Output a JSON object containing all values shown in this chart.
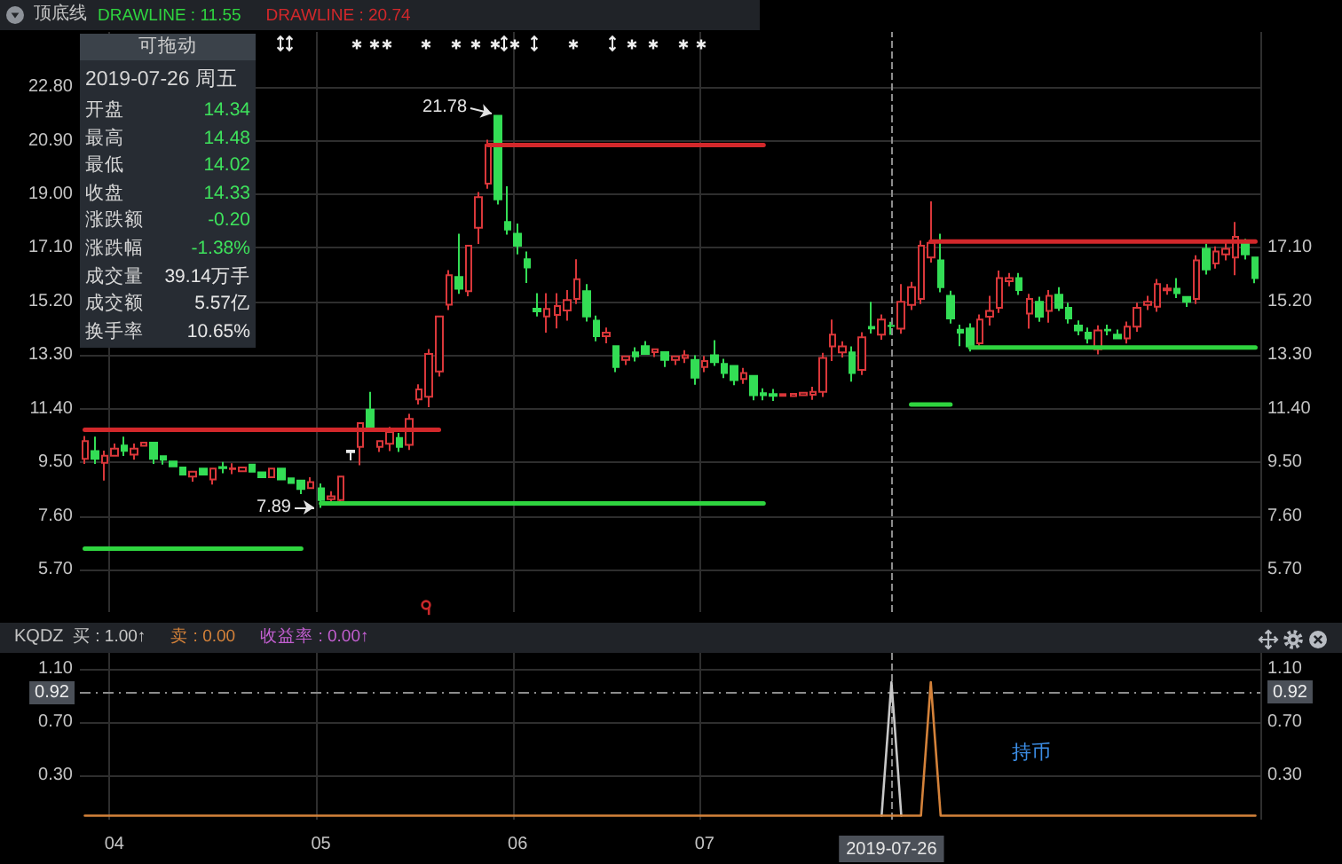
{
  "chart_data": [
    {
      "type": "candlestick",
      "title": "顶底线",
      "categories": [
        null,
        null,
        null,
        "04",
        null,
        null,
        null,
        null,
        null,
        null,
        null,
        null,
        null,
        null,
        null,
        null,
        null,
        null,
        null,
        null,
        null,
        null,
        null,
        null,
        "05",
        null,
        null,
        null,
        null,
        null,
        null,
        null,
        null,
        null,
        null,
        null,
        null,
        null,
        null,
        null,
        null,
        null,
        null,
        null,
        "06",
        null,
        null,
        null,
        null,
        null,
        null,
        null,
        null,
        null,
        null,
        null,
        null,
        null,
        null,
        null,
        null,
        null,
        null,
        "07",
        null,
        null,
        null,
        null,
        null,
        null,
        null,
        null,
        null,
        null,
        null,
        null,
        null,
        null,
        null,
        null,
        null,
        null,
        "2019-07-26",
        null,
        null,
        null,
        null,
        null,
        null,
        null,
        null,
        null,
        null,
        null,
        null,
        null,
        null,
        null,
        null,
        null,
        null,
        null,
        null,
        null,
        null,
        null,
        null,
        null,
        null,
        null,
        null,
        null,
        null,
        null,
        null,
        null,
        null,
        null,
        null,
        null
      ],
      "ohlc": [
        [
          9.63,
          10.44,
          9.45,
          10.26
        ],
        [
          9.9,
          10.41,
          9.45,
          9.63
        ],
        [
          9.49,
          9.92,
          8.86,
          9.74
        ],
        [
          9.74,
          10.17,
          9.74,
          9.99
        ],
        [
          10.1,
          10.41,
          9.73,
          9.91
        ],
        [
          9.78,
          10.17,
          9.6,
          9.99
        ],
        [
          10.09,
          10.2,
          10.09,
          10.2
        ],
        [
          10.2,
          10.2,
          9.45,
          9.63
        ],
        [
          9.72,
          9.72,
          9.42,
          9.6
        ],
        [
          9.53,
          9.53,
          9.36,
          9.36
        ],
        [
          9.32,
          9.32,
          9.07,
          9.07
        ],
        [
          9.0,
          9.17,
          8.82,
          9.17
        ],
        [
          9.28,
          9.28,
          9.07,
          9.07
        ],
        [
          8.9,
          9.28,
          8.72,
          9.28
        ],
        [
          9.34,
          9.52,
          9.12,
          9.3
        ],
        [
          9.27,
          9.47,
          9.09,
          9.29
        ],
        [
          9.19,
          9.32,
          9.19,
          9.32
        ],
        [
          9.42,
          9.42,
          9.17,
          9.17
        ],
        [
          9.15,
          9.15,
          8.98,
          8.98
        ],
        [
          8.98,
          9.28,
          8.98,
          9.28
        ],
        [
          9.28,
          9.28,
          8.9,
          8.9
        ],
        [
          8.94,
          8.94,
          8.77,
          8.77
        ],
        [
          8.86,
          8.86,
          8.38,
          8.56
        ],
        [
          8.59,
          8.98,
          8.59,
          8.8
        ],
        [
          8.58,
          8.76,
          7.89,
          8.17
        ],
        [
          8.2,
          8.48,
          8.02,
          8.3
        ],
        [
          8.17,
          9.0,
          7.99,
          9.0
        ],
        [
          9.86,
          9.92,
          9.57,
          9.92
        ],
        [
          10.05,
          10.89,
          9.4,
          10.89
        ],
        [
          11.37,
          12.0,
          10.74,
          10.74
        ],
        [
          10.05,
          10.26,
          9.87,
          10.26
        ],
        [
          10.16,
          10.76,
          9.9,
          10.58
        ],
        [
          10.37,
          10.55,
          9.87,
          10.05
        ],
        [
          10.12,
          11.22,
          9.94,
          11.04
        ],
        [
          11.73,
          12.27,
          11.55,
          12.09
        ],
        [
          11.83,
          13.52,
          11.46,
          13.34
        ],
        [
          12.72,
          14.67,
          12.54,
          14.67
        ],
        [
          15.09,
          16.31,
          14.9,
          16.13
        ],
        [
          16.07,
          17.6,
          15.47,
          15.65
        ],
        [
          15.57,
          17.18,
          15.39,
          17.18
        ],
        [
          17.81,
          19.08,
          17.24,
          18.9
        ],
        [
          19.38,
          20.93,
          19.2,
          20.75
        ],
        [
          21.78,
          21.78,
          18.64,
          18.82
        ],
        [
          18.02,
          19.28,
          17.57,
          17.75
        ],
        [
          17.6,
          17.96,
          16.87,
          17.18
        ],
        [
          16.7,
          16.97,
          15.86,
          16.41
        ],
        [
          14.95,
          15.5,
          14.67,
          14.85
        ],
        [
          14.67,
          15.5,
          14.1,
          14.94
        ],
        [
          14.73,
          15.5,
          14.25,
          15.04
        ],
        [
          14.88,
          15.61,
          14.52,
          15.25
        ],
        [
          15.29,
          16.7,
          15.11,
          15.99
        ],
        [
          15.57,
          15.82,
          14.49,
          14.67
        ],
        [
          14.52,
          14.7,
          13.79,
          13.97
        ],
        [
          13.97,
          14.28,
          13.72,
          14.1
        ],
        [
          13.62,
          13.62,
          12.7,
          12.88
        ],
        [
          13.13,
          13.26,
          12.95,
          13.26
        ],
        [
          13.4,
          13.58,
          13.08,
          13.26
        ],
        [
          13.62,
          13.8,
          13.34,
          13.34
        ],
        [
          13.41,
          13.51,
          13.23,
          13.51
        ],
        [
          13.41,
          13.41,
          12.88,
          13.13
        ],
        [
          13.13,
          13.26,
          12.95,
          13.26
        ],
        [
          13.2,
          13.48,
          13.02,
          13.3
        ],
        [
          13.13,
          13.3,
          12.25,
          12.5
        ],
        [
          12.88,
          13.27,
          12.7,
          13.09
        ],
        [
          13.3,
          13.83,
          12.92,
          13.05
        ],
        [
          12.99,
          13.17,
          12.49,
          12.67
        ],
        [
          12.92,
          12.92,
          12.24,
          12.42
        ],
        [
          12.46,
          12.85,
          12.28,
          12.67
        ],
        [
          12.57,
          12.57,
          11.7,
          11.88
        ],
        [
          11.95,
          12.13,
          11.7,
          11.88
        ],
        [
          11.92,
          12.1,
          11.68,
          11.86
        ],
        [
          11.86,
          11.92,
          11.86,
          11.92
        ],
        [
          11.85,
          11.93,
          11.85,
          11.93
        ],
        [
          11.88,
          11.97,
          11.88,
          11.97
        ],
        [
          11.9,
          12.18,
          11.72,
          12.0
        ],
        [
          12.0,
          13.38,
          11.82,
          13.2
        ],
        [
          13.61,
          14.56,
          13.09,
          14.03
        ],
        [
          13.4,
          13.79,
          13.22,
          13.61
        ],
        [
          13.4,
          13.61,
          12.36,
          12.67
        ],
        [
          12.78,
          14.11,
          12.6,
          13.93
        ],
        [
          14.3,
          15.19,
          14.07,
          14.25
        ],
        [
          14.03,
          14.74,
          13.85,
          14.56
        ],
        [
          14.34,
          14.48,
          14.02,
          14.33
        ],
        [
          14.24,
          15.82,
          14.06,
          15.19
        ],
        [
          15.08,
          15.9,
          14.9,
          15.71
        ],
        [
          15.29,
          17.36,
          15.11,
          17.18
        ],
        [
          16.76,
          18.75,
          16.58,
          17.28
        ],
        [
          16.66,
          17.6,
          15.53,
          15.71
        ],
        [
          15.4,
          15.58,
          14.42,
          14.6
        ],
        [
          14.2,
          14.38,
          13.62,
          14.1
        ],
        [
          14.25,
          14.43,
          13.43,
          13.61
        ],
        [
          13.72,
          14.74,
          13.54,
          14.56
        ],
        [
          14.66,
          15.4,
          14.35,
          14.87
        ],
        [
          14.98,
          16.3,
          14.8,
          16.03
        ],
        [
          15.92,
          16.21,
          15.74,
          16.03
        ],
        [
          16.03,
          16.21,
          15.43,
          15.61
        ],
        [
          14.77,
          15.47,
          14.24,
          15.29
        ],
        [
          15.19,
          15.37,
          14.48,
          14.66
        ],
        [
          14.87,
          15.61,
          14.45,
          15.4
        ],
        [
          15.44,
          15.71,
          14.87,
          14.98
        ],
        [
          14.98,
          15.16,
          14.42,
          14.6
        ],
        [
          14.35,
          14.53,
          14.0,
          14.18
        ],
        [
          14.1,
          14.28,
          13.71,
          13.89
        ],
        [
          13.51,
          14.36,
          13.33,
          14.18
        ],
        [
          14.2,
          14.38,
          14.0,
          14.18
        ],
        [
          14.03,
          14.21,
          13.89,
          13.89
        ],
        [
          13.89,
          14.49,
          13.71,
          14.31
        ],
        [
          14.31,
          15.16,
          14.13,
          14.98
        ],
        [
          15.08,
          15.4,
          14.9,
          15.19
        ],
        [
          15.02,
          16.0,
          14.84,
          15.82
        ],
        [
          15.6,
          15.82,
          15.44,
          15.66
        ],
        [
          15.65,
          16.03,
          15.32,
          15.5
        ],
        [
          15.36,
          15.36,
          15.01,
          15.19
        ],
        [
          15.29,
          16.84,
          15.11,
          16.66
        ],
        [
          17.07,
          17.25,
          16.16,
          16.34
        ],
        [
          16.55,
          17.15,
          16.37,
          16.97
        ],
        [
          16.87,
          17.33,
          16.66,
          17.07
        ],
        [
          16.76,
          18.02,
          16.13,
          17.49
        ],
        [
          17.24,
          17.42,
          16.69,
          16.87
        ],
        [
          16.76,
          16.76,
          15.85,
          16.03
        ]
      ],
      "colors": [
        "#d9373a",
        "#33dd55",
        "#d9373a",
        "#d9373a",
        "#33dd55",
        "#d9373a",
        "#d9373a",
        "#33dd55",
        "#33dd55",
        "#33dd55",
        "#33dd55",
        "#d9373a",
        "#33dd55",
        "#d9373a",
        "#33dd55",
        "#d9373a",
        "#d9373a",
        "#33dd55",
        "#33dd55",
        "#d9373a",
        "#33dd55",
        "#33dd55",
        "#33dd55",
        "#d9373a",
        "#33dd55",
        "#d9373a",
        "#d9373a",
        "#e8e8e8",
        "#d9373a",
        "#33dd55",
        "#d9373a",
        "#d9373a",
        "#33dd55",
        "#d9373a",
        "#d9373a",
        "#d9373a",
        "#d9373a",
        "#d9373a",
        "#33dd55",
        "#d9373a",
        "#d9373a",
        "#d9373a",
        "#33dd55",
        "#33dd55",
        "#33dd55",
        "#33dd55",
        "#33dd55",
        "#d9373a",
        "#d9373a",
        "#d9373a",
        "#d9373a",
        "#33dd55",
        "#33dd55",
        "#d9373a",
        "#33dd55",
        "#d9373a",
        "#33dd55",
        "#33dd55",
        "#d9373a",
        "#33dd55",
        "#d9373a",
        "#d9373a",
        "#33dd55",
        "#d9373a",
        "#33dd55",
        "#33dd55",
        "#33dd55",
        "#d9373a",
        "#33dd55",
        "#33dd55",
        "#33dd55",
        "#d9373a",
        "#d9373a",
        "#d9373a",
        "#d9373a",
        "#d9373a",
        "#d9373a",
        "#d9373a",
        "#33dd55",
        "#d9373a",
        "#33dd55",
        "#d9373a",
        "#33dd55",
        "#d9373a",
        "#d9373a",
        "#d9373a",
        "#d9373a",
        "#33dd55",
        "#33dd55",
        "#33dd55",
        "#33dd55",
        "#d9373a",
        "#d9373a",
        "#d9373a",
        "#d9373a",
        "#33dd55",
        "#d9373a",
        "#33dd55",
        "#d9373a",
        "#33dd55",
        "#33dd55",
        "#33dd55",
        "#33dd55",
        "#d9373a",
        "#33dd55",
        "#33dd55",
        "#d9373a",
        "#d9373a",
        "#d9373a",
        "#d9373a",
        "#d9373a",
        "#33dd55",
        "#33dd55",
        "#d9373a",
        "#33dd55",
        "#d9373a",
        "#d9373a",
        "#d9373a",
        "#33dd55",
        "#33dd55"
      ],
      "series": [
        {
          "name": "DRAWLINE : 11.55",
          "type": "line",
          "color": "#2fd43f",
          "values": [
            6.45,
            6.45,
            6.45,
            6.45,
            6.45,
            6.45,
            6.45,
            6.45,
            6.45,
            6.45,
            6.45,
            6.45,
            6.45,
            6.45,
            6.45,
            6.45,
            6.45,
            6.45,
            6.45,
            6.45,
            6.45,
            6.45,
            6.45,
            null,
            8.05,
            8.05,
            8.05,
            8.05,
            8.05,
            8.05,
            8.05,
            8.05,
            8.05,
            8.05,
            8.05,
            8.05,
            8.05,
            8.05,
            8.05,
            8.05,
            8.05,
            8.05,
            8.05,
            8.05,
            8.05,
            8.05,
            8.05,
            8.05,
            8.05,
            8.05,
            8.05,
            8.05,
            8.05,
            8.05,
            8.05,
            8.05,
            8.05,
            8.05,
            8.05,
            8.05,
            8.05,
            8.05,
            8.05,
            8.05,
            8.05,
            8.05,
            8.05,
            8.05,
            8.05,
            8.05,
            null,
            null,
            null,
            null,
            null,
            null,
            null,
            null,
            null,
            null,
            null,
            null,
            null,
            null,
            11.55,
            11.55,
            11.55,
            11.55,
            11.55,
            null,
            13.57,
            13.57,
            13.57,
            13.57,
            13.57,
            13.57,
            13.57,
            13.57,
            13.57,
            13.57,
            13.57,
            13.57,
            13.57,
            13.57,
            13.57,
            13.57,
            13.57,
            13.57,
            13.57,
            13.57,
            13.57,
            13.57,
            13.57,
            13.57,
            13.57,
            13.57,
            13.57,
            13.57,
            13.57,
            13.57
          ]
        },
        {
          "name": "DRAWLINE : 20.74",
          "type": "line",
          "color": "#d3282b",
          "values": [
            10.66,
            10.66,
            10.66,
            10.66,
            10.66,
            10.66,
            10.66,
            10.66,
            10.66,
            10.66,
            10.66,
            10.66,
            10.66,
            10.66,
            10.66,
            10.66,
            10.66,
            10.66,
            10.66,
            10.66,
            10.66,
            10.66,
            10.66,
            10.66,
            10.66,
            10.66,
            10.66,
            10.66,
            10.66,
            10.66,
            10.66,
            10.66,
            10.66,
            10.66,
            10.66,
            10.66,
            10.66,
            null,
            null,
            null,
            null,
            20.74,
            20.74,
            20.74,
            20.74,
            20.74,
            20.74,
            20.74,
            20.74,
            20.74,
            20.74,
            20.74,
            20.74,
            20.74,
            20.74,
            20.74,
            20.74,
            20.74,
            20.74,
            20.74,
            20.74,
            20.74,
            20.74,
            20.74,
            20.74,
            20.74,
            20.74,
            20.74,
            20.74,
            20.74,
            null,
            null,
            null,
            null,
            null,
            null,
            null,
            null,
            null,
            null,
            null,
            null,
            null,
            null,
            null,
            null,
            17.33,
            17.33,
            17.33,
            17.33,
            17.33,
            17.33,
            17.33,
            17.33,
            17.33,
            17.33,
            17.33,
            17.33,
            17.33,
            17.33,
            17.33,
            17.33,
            17.33,
            17.33,
            17.33,
            17.33,
            17.33,
            17.33,
            17.33,
            17.33,
            17.33,
            17.33,
            17.33,
            17.33,
            17.33,
            17.33,
            17.33,
            17.33,
            17.33,
            17.33
          ]
        }
      ],
      "ylim": [
        4.2,
        24.75
      ],
      "yticks": [
        {
          "value": 5.7,
          "label": "5.70"
        },
        {
          "value": 7.6,
          "label": "7.60"
        },
        {
          "value": 9.5,
          "label": "9.50"
        },
        {
          "value": 11.4,
          "label": "11.40"
        },
        {
          "value": 13.3,
          "label": "13.30"
        },
        {
          "value": 15.2,
          "label": "15.20"
        },
        {
          "value": 17.1,
          "label": "17.10"
        },
        {
          "value": 19,
          "label": "19.00"
        },
        {
          "value": 20.9,
          "label": "20.90"
        },
        {
          "value": 22.8,
          "label": "22.80"
        }
      ],
      "y2lim": [
        4.2,
        24.75
      ],
      "y2ticks": [
        {
          "value": 5.7,
          "label": "5.70"
        },
        {
          "value": 7.6,
          "label": "7.60"
        },
        {
          "value": 9.5,
          "label": "9.50"
        },
        {
          "value": 11.4,
          "label": "11.40"
        },
        {
          "value": 13.3,
          "label": "13.30"
        },
        {
          "value": 15.2,
          "label": "15.20"
        },
        {
          "value": 17.1,
          "label": "17.10"
        }
      ],
      "ref_lines": [
        {
          "axis": "x",
          "value": "2019-07-26"
        }
      ],
      "annotations": [
        "21.78",
        "7.89"
      ],
      "grid": true,
      "legend": "top left",
      "tick_labels": "y"
    },
    {
      "type": "other",
      "title": "可拖动",
      "subtitle": "2019-07-26 周五",
      "annotations": [
        "开盘",
        "14.34",
        "最高",
        "14.48",
        "最低",
        "14.02",
        "收盘",
        "14.33",
        "涨跌额",
        "-0.20",
        "涨跌幅",
        "-1.38%",
        "成交量",
        "39.14万手",
        "成交额",
        "5.57亿",
        "换手率",
        "10.65%"
      ]
    },
    {
      "type": "line",
      "title": "KQDZ",
      "categories": [
        null,
        null,
        null,
        "04",
        null,
        null,
        null,
        null,
        null,
        null,
        null,
        null,
        null,
        null,
        null,
        null,
        null,
        null,
        null,
        null,
        null,
        null,
        null,
        null,
        "05",
        null,
        null,
        null,
        null,
        null,
        null,
        null,
        null,
        null,
        null,
        null,
        null,
        null,
        null,
        null,
        null,
        null,
        null,
        null,
        "06",
        null,
        null,
        null,
        null,
        null,
        null,
        null,
        null,
        null,
        null,
        null,
        null,
        null,
        null,
        null,
        null,
        null,
        null,
        "07",
        null,
        null,
        null,
        null,
        null,
        null,
        null,
        null,
        null,
        null,
        null,
        null,
        null,
        null,
        null,
        null,
        null,
        null,
        "2019-07-26",
        null,
        null,
        null,
        null,
        null,
        null,
        null,
        null,
        null,
        null,
        null,
        null,
        null,
        null,
        null,
        null,
        null,
        null,
        null,
        null,
        null,
        null,
        null,
        null,
        null,
        null,
        null,
        null,
        null,
        null,
        null,
        null,
        null,
        null,
        null,
        null,
        null
      ],
      "series": [
        {
          "name": "买 : 1.00↑",
          "color": "#c8c8c8",
          "values": [
            null,
            null,
            null,
            null,
            null,
            null,
            null,
            null,
            null,
            null,
            null,
            null,
            null,
            null,
            null,
            null,
            null,
            null,
            null,
            null,
            null,
            null,
            null,
            null,
            null,
            null,
            null,
            null,
            null,
            null,
            null,
            null,
            null,
            null,
            null,
            null,
            null,
            null,
            null,
            null,
            null,
            null,
            null,
            null,
            null,
            null,
            null,
            null,
            null,
            null,
            null,
            null,
            null,
            null,
            null,
            null,
            null,
            null,
            null,
            null,
            null,
            null,
            null,
            null,
            null,
            null,
            null,
            null,
            null,
            null,
            null,
            null,
            null,
            null,
            null,
            null,
            null,
            null,
            null,
            null,
            null,
            0,
            1,
            0,
            null,
            null,
            null,
            null,
            null,
            null,
            null,
            null,
            null,
            null,
            null,
            null,
            null,
            null,
            null,
            null,
            null,
            null,
            null,
            null,
            null,
            null,
            null,
            null,
            null,
            null,
            null,
            null,
            null,
            null,
            null,
            null,
            null,
            null,
            null,
            null
          ]
        },
        {
          "name": "卖 : 0.00",
          "color": "#d4823a",
          "values": [
            0,
            0,
            0,
            0,
            0,
            0,
            0,
            0,
            0,
            0,
            0,
            0,
            0,
            0,
            0,
            0,
            0,
            0,
            0,
            0,
            0,
            0,
            0,
            0,
            0,
            0,
            0,
            0,
            0,
            0,
            0,
            0,
            0,
            0,
            0,
            0,
            0,
            0,
            0,
            0,
            0,
            0,
            0,
            0,
            0,
            0,
            0,
            0,
            0,
            0,
            0,
            0,
            0,
            0,
            0,
            0,
            0,
            0,
            0,
            0,
            0,
            0,
            0,
            0,
            0,
            0,
            0,
            0,
            0,
            0,
            0,
            0,
            0,
            0,
            0,
            0,
            0,
            0,
            0,
            0,
            0,
            0,
            0,
            0,
            0,
            0,
            1,
            0,
            0,
            0,
            0,
            0,
            0,
            0,
            0,
            0,
            0,
            0,
            0,
            0,
            0,
            0,
            0,
            0,
            0,
            0,
            0,
            0,
            0,
            0,
            0,
            0,
            0,
            0,
            0,
            0,
            0,
            0,
            0,
            0
          ]
        }
      ],
      "ylim": [
        -0.03,
        1.22
      ],
      "yticks": [
        {
          "value": 0.3,
          "label": "0.30"
        },
        {
          "value": 0.7,
          "label": "0.70"
        },
        {
          "value": 1.1,
          "label": "1.10"
        }
      ],
      "y2lim": [
        -0.03,
        1.22
      ],
      "y2ticks": [
        {
          "value": 0.3,
          "label": "0.30"
        },
        {
          "value": 0.7,
          "label": "0.70"
        },
        {
          "value": 1.1,
          "label": "1.10"
        }
      ],
      "ref_lines": [
        {
          "axis": "x",
          "value": "2019-07-26"
        },
        {
          "axis": "y",
          "value": 0.92,
          "label": "0.92"
        }
      ],
      "annotations": [
        "收益率 : 0.00↑",
        "持币"
      ],
      "grid": true,
      "legend": "top left"
    }
  ]
}
